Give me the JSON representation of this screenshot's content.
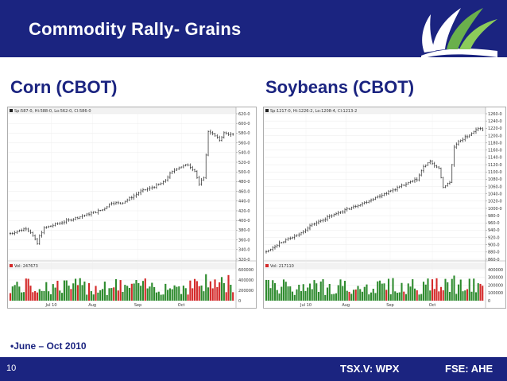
{
  "slide": {
    "title": "Commodity Rally- Grains",
    "page_number": "10",
    "bullet": "•June – Oct 2010",
    "ticker_tsx": "TSX.V: WPX",
    "ticker_fse": "FSE: AHE"
  },
  "colors": {
    "navy": "#1b2480",
    "volume_up": "#2e8b2e",
    "volume_down": "#d42a2a",
    "logo_green": "#6ab04c"
  },
  "chart_data": [
    {
      "type": "bar",
      "title": "Corn (CBOT)",
      "subtitle": "Sp:587-0, Hi:588-0, Lo:562-0, Cl:586-0",
      "volume_label": "Vol: 247673",
      "x_ticks": [
        "Jul 10",
        "Aug",
        "Sep",
        "Oct"
      ],
      "y_ticks": [
        320,
        340,
        360,
        380,
        400,
        420,
        440,
        460,
        480,
        500,
        520,
        540,
        560,
        580,
        600,
        620
      ],
      "y_tick_labels": [
        "320-0",
        "340-0",
        "360-0",
        "380-0",
        "400-0",
        "420-0",
        "440-0",
        "460-0",
        "480-0",
        "500-0",
        "520-0",
        "540-0",
        "560-0",
        "580-0",
        "600-0",
        "620-0"
      ],
      "ylim": [
        320,
        620
      ],
      "volume_ticks": [
        0,
        200000,
        400000,
        600000
      ],
      "volume_tick_labels": [
        "0",
        "200000",
        "400000",
        "600000"
      ],
      "volume_ylim": [
        0,
        600000
      ],
      "trend": [
        {
          "i": 0,
          "p": 373
        },
        {
          "i": 7,
          "p": 384
        },
        {
          "i": 9,
          "p": 376
        },
        {
          "i": 12,
          "p": 352
        },
        {
          "i": 13,
          "p": 368
        },
        {
          "i": 15,
          "p": 384
        },
        {
          "i": 20,
          "p": 392
        },
        {
          "i": 27,
          "p": 402
        },
        {
          "i": 34,
          "p": 412
        },
        {
          "i": 41,
          "p": 422
        },
        {
          "i": 45,
          "p": 437
        },
        {
          "i": 49,
          "p": 435
        },
        {
          "i": 54,
          "p": 448
        },
        {
          "i": 58,
          "p": 460
        },
        {
          "i": 63,
          "p": 468
        },
        {
          "i": 68,
          "p": 478
        },
        {
          "i": 71,
          "p": 496
        },
        {
          "i": 74,
          "p": 508
        },
        {
          "i": 79,
          "p": 515
        },
        {
          "i": 82,
          "p": 502
        },
        {
          "i": 84,
          "p": 474
        },
        {
          "i": 86,
          "p": 490
        },
        {
          "i": 87,
          "p": 534
        },
        {
          "i": 88,
          "p": 584
        },
        {
          "i": 89,
          "p": 582
        },
        {
          "i": 91,
          "p": 574
        },
        {
          "i": 93,
          "p": 566
        },
        {
          "i": 95,
          "p": 580
        },
        {
          "i": 97,
          "p": 578
        },
        {
          "i": 99,
          "p": 576
        }
      ],
      "bars_count": 100
    },
    {
      "type": "bar",
      "title": "Soybeans (CBOT)",
      "subtitle": "Sp:1217-0, Hi:1226-2, Lo:1208-4, Cl:1213-2",
      "volume_label": "Vol: 217110",
      "x_ticks": [
        "Jul 10",
        "Aug",
        "Sep",
        "Oct"
      ],
      "y_ticks": [
        860,
        880,
        900,
        920,
        940,
        960,
        980,
        1000,
        1020,
        1040,
        1060,
        1080,
        1100,
        1120,
        1140,
        1160,
        1180,
        1200,
        1220,
        1240,
        1260
      ],
      "y_tick_labels": [
        "860-0",
        "880-0",
        "900-0",
        "920-0",
        "940-0",
        "960-0",
        "980-0",
        "1000-0",
        "1020-0",
        "1040-0",
        "1060-0",
        "1080-0",
        "1100-0",
        "1120-0",
        "1140-0",
        "1160-0",
        "1180-0",
        "1200-0",
        "1220-0",
        "1240-0",
        "1260-0"
      ],
      "ylim": [
        860,
        1260
      ],
      "volume_ticks": [
        0,
        100000,
        200000,
        300000,
        400000
      ],
      "volume_tick_labels": [
        "0",
        "100000",
        "200000",
        "300000",
        "400000"
      ],
      "volume_ylim": [
        0,
        400000
      ],
      "trend": [
        {
          "i": 0,
          "p": 880
        },
        {
          "i": 6,
          "p": 905
        },
        {
          "i": 10,
          "p": 915
        },
        {
          "i": 15,
          "p": 928
        },
        {
          "i": 20,
          "p": 952
        },
        {
          "i": 27,
          "p": 972
        },
        {
          "i": 33,
          "p": 988
        },
        {
          "i": 39,
          "p": 1002
        },
        {
          "i": 45,
          "p": 1016
        },
        {
          "i": 51,
          "p": 1032
        },
        {
          "i": 57,
          "p": 1048
        },
        {
          "i": 63,
          "p": 1064
        },
        {
          "i": 69,
          "p": 1080
        },
        {
          "i": 72,
          "p": 1114
        },
        {
          "i": 75,
          "p": 1128
        },
        {
          "i": 79,
          "p": 1108
        },
        {
          "i": 81,
          "p": 1058
        },
        {
          "i": 84,
          "p": 1072
        },
        {
          "i": 86,
          "p": 1168
        },
        {
          "i": 89,
          "p": 1188
        },
        {
          "i": 92,
          "p": 1198
        },
        {
          "i": 95,
          "p": 1210
        },
        {
          "i": 97,
          "p": 1220
        },
        {
          "i": 99,
          "p": 1215
        }
      ],
      "bars_count": 100
    }
  ]
}
